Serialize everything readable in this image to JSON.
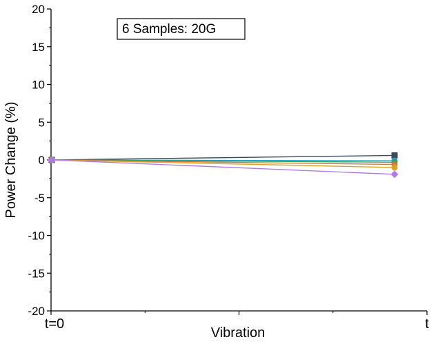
{
  "chart_data": {
    "type": "line",
    "categories": [
      "t=0",
      "t"
    ],
    "xlabel": "Vibration",
    "ylabel": "Power Change (%)",
    "ylim": [
      -20,
      20
    ],
    "yticks": [
      20,
      15,
      10,
      5,
      0,
      -5,
      -10,
      -15,
      -20
    ],
    "annotation": "6 Samples: 20G",
    "grid": false,
    "series": [
      {
        "values": [
          0,
          0.6
        ],
        "color": "#3a4a5c",
        "marker": "square"
      },
      {
        "values": [
          0,
          -0.1
        ],
        "color": "#2aa3c9",
        "marker": "circle"
      },
      {
        "values": [
          0,
          -0.3
        ],
        "color": "#2fa36b",
        "marker": "circle"
      },
      {
        "values": [
          0,
          -0.6
        ],
        "color": "#c97a3a",
        "marker": "circle"
      },
      {
        "values": [
          0,
          -1.0
        ],
        "color": "#e0a020",
        "marker": "circle"
      },
      {
        "values": [
          0,
          -1.9
        ],
        "color": "#b07be8",
        "marker": "diamond"
      }
    ]
  }
}
